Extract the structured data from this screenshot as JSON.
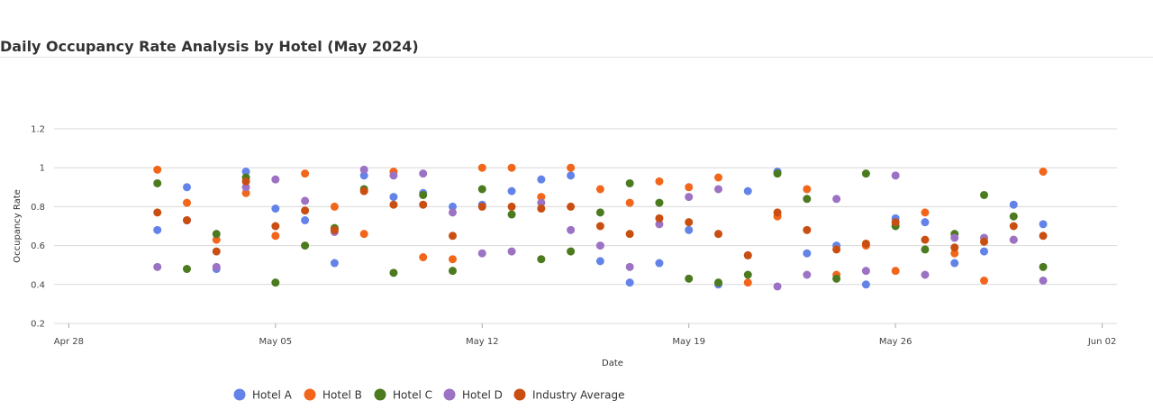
{
  "header": {
    "title": "Daily Occupancy Rate Analysis by Hotel (May 2024)"
  },
  "chart_data": {
    "type": "scatter",
    "title": "Daily Occupancy Rate Analysis by Hotel (May 2024)",
    "xlabel": "Date",
    "ylabel": "Occupancy Rate",
    "x_ticks": [
      {
        "label": "Apr 28",
        "day": 0
      },
      {
        "label": "May 05",
        "day": 7
      },
      {
        "label": "May 12",
        "day": 14
      },
      {
        "label": "May 19",
        "day": 21
      },
      {
        "label": "May 26",
        "day": 28
      },
      {
        "label": "Jun 02",
        "day": 35
      }
    ],
    "x_note": "day = days since Apr 28, 2024",
    "xlim": [
      -0.5,
      35.5
    ],
    "ylim": [
      0.2,
      1.2
    ],
    "y_ticks": [
      0.2,
      0.4,
      0.6,
      0.8,
      1,
      1.2
    ],
    "y_tick_labels": [
      "0.2",
      "0.4",
      "0.6",
      "0.8",
      "1",
      "1.2"
    ],
    "grid": true,
    "legend_position": "bottom",
    "x_days": [
      3,
      4,
      5,
      6,
      7,
      8,
      9,
      10,
      11,
      12,
      13,
      14,
      15,
      16,
      17,
      18,
      19,
      20,
      21,
      22,
      23,
      24,
      25,
      26,
      27,
      28,
      29,
      30,
      31,
      32,
      33
    ],
    "series": [
      {
        "name": "Hotel A",
        "color": "#6383E8",
        "values": [
          0.68,
          0.9,
          0.48,
          0.98,
          0.79,
          0.73,
          0.51,
          0.96,
          0.85,
          0.87,
          0.8,
          0.81,
          0.88,
          0.94,
          0.96,
          0.52,
          0.41,
          0.51,
          0.68,
          0.4,
          0.88,
          0.98,
          0.56,
          0.6,
          0.4,
          0.74,
          0.72,
          0.51,
          0.57,
          0.81,
          0.71
        ]
      },
      {
        "name": "Hotel B",
        "color": "#F2661C",
        "values": [
          0.99,
          0.82,
          0.63,
          0.87,
          0.65,
          0.97,
          0.8,
          0.66,
          0.98,
          0.54,
          0.53,
          1.0,
          1.0,
          0.85,
          1.0,
          0.89,
          0.82,
          0.93,
          0.9,
          0.95,
          0.41,
          0.75,
          0.89,
          0.45,
          0.6,
          0.47,
          0.77,
          0.56,
          0.42,
          0.63,
          0.98
        ]
      },
      {
        "name": "Hotel C",
        "color": "#4B7A1F",
        "values": [
          0.92,
          0.48,
          0.66,
          0.95,
          0.41,
          0.6,
          0.69,
          0.89,
          0.46,
          0.86,
          0.47,
          0.89,
          0.76,
          0.53,
          0.57,
          0.77,
          0.92,
          0.82,
          0.43,
          0.41,
          0.45,
          0.97,
          0.84,
          0.43,
          0.97,
          0.7,
          0.58,
          0.66,
          0.86,
          0.75,
          0.49
        ]
      },
      {
        "name": "Hotel D",
        "color": "#9C72C4",
        "values": [
          0.49,
          0.73,
          0.49,
          0.9,
          0.94,
          0.83,
          0.67,
          0.99,
          0.96,
          0.97,
          0.77,
          0.56,
          0.57,
          0.82,
          0.68,
          0.6,
          0.49,
          0.71,
          0.85,
          0.89,
          0.55,
          0.39,
          0.45,
          0.84,
          0.47,
          0.96,
          0.45,
          0.64,
          0.64,
          0.63,
          0.42
        ]
      },
      {
        "name": "Industry Average",
        "color": "#C94E11",
        "values": [
          0.77,
          0.73,
          0.57,
          0.93,
          0.7,
          0.78,
          0.68,
          0.88,
          0.81,
          0.81,
          0.65,
          0.8,
          0.8,
          0.79,
          0.8,
          0.7,
          0.66,
          0.74,
          0.72,
          0.66,
          0.55,
          0.77,
          0.68,
          0.58,
          0.61,
          0.72,
          0.63,
          0.59,
          0.62,
          0.7,
          0.65
        ]
      }
    ]
  }
}
